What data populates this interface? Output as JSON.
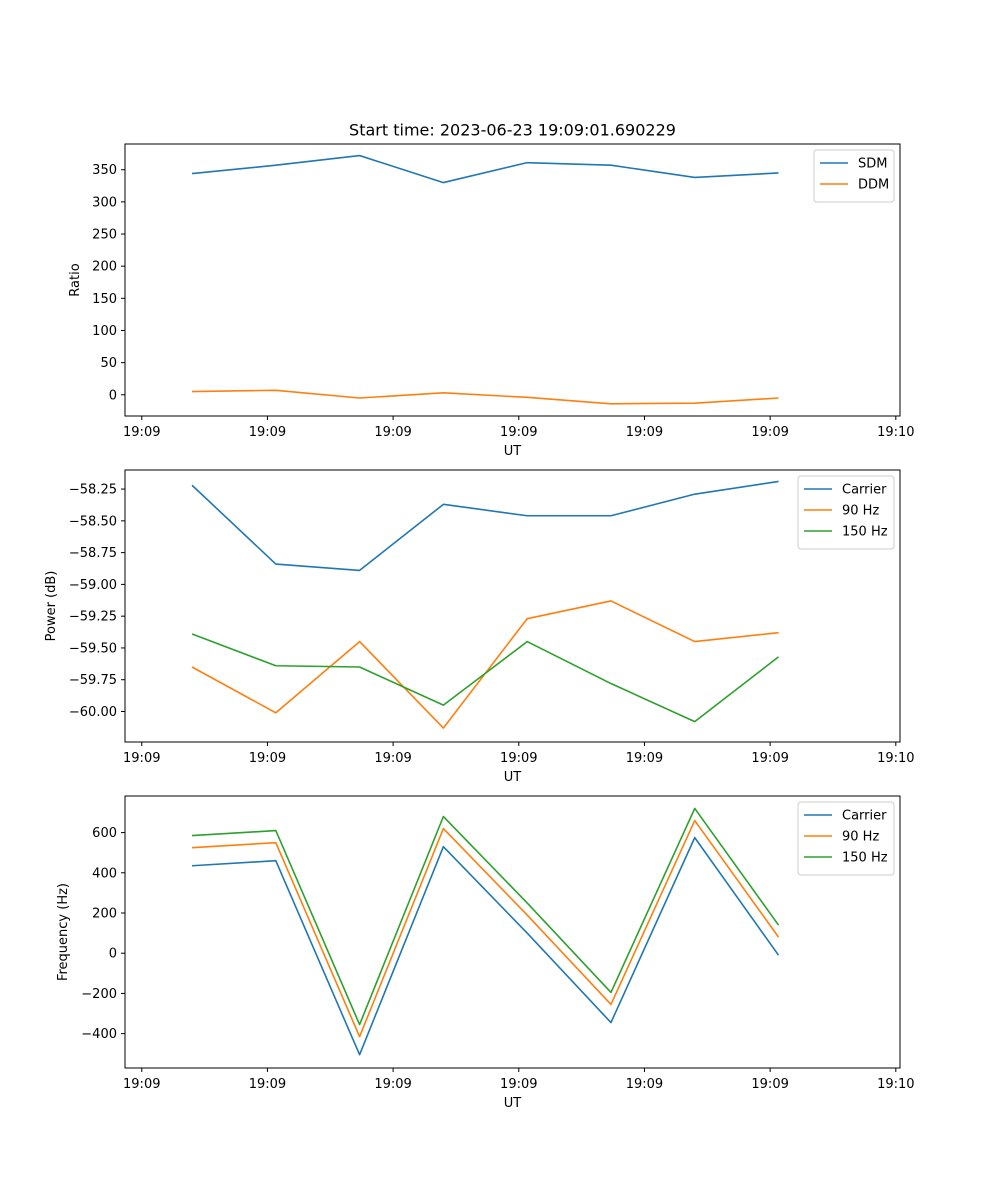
{
  "figure": {
    "title": "Start time: 2023-06-23 19:09:01.690229"
  },
  "colors": {
    "blue": "#1f77b4",
    "orange": "#ff7f0e",
    "green": "#2ca02c"
  },
  "chart_data": [
    {
      "type": "line",
      "title": "Start time: 2023-06-23 19:09:01.690229",
      "xlabel": "UT",
      "ylabel": "Ratio",
      "x": [
        1,
        2,
        3,
        4,
        5,
        6,
        7,
        8
      ],
      "xlim": [
        0.2,
        9.45
      ],
      "xticks": [
        0.4,
        1.9,
        3.4,
        4.9,
        6.4,
        7.9,
        9.4
      ],
      "xtick_labels": [
        "19:09",
        "19:09",
        "19:09",
        "19:09",
        "19:09",
        "19:09",
        "19:10"
      ],
      "ylim": [
        -33,
        390
      ],
      "yticks": [
        0,
        50,
        100,
        150,
        200,
        250,
        300,
        350
      ],
      "ytick_labels": [
        "0",
        "50",
        "100",
        "150",
        "200",
        "250",
        "300",
        "350"
      ],
      "legend": "top-right",
      "series": [
        {
          "name": "SDM",
          "color": "#1f77b4",
          "values": [
            344,
            357,
            372,
            330,
            361,
            357,
            338,
            345
          ]
        },
        {
          "name": "DDM",
          "color": "#ff7f0e",
          "values": [
            5,
            7,
            -5,
            3,
            -4,
            -14,
            -13,
            -5
          ]
        }
      ]
    },
    {
      "type": "line",
      "xlabel": "UT",
      "ylabel": "Power (dB)",
      "x": [
        1,
        2,
        3,
        4,
        5,
        6,
        7,
        8
      ],
      "xlim": [
        0.2,
        9.45
      ],
      "xticks": [
        0.4,
        1.9,
        3.4,
        4.9,
        6.4,
        7.9,
        9.4
      ],
      "xtick_labels": [
        "19:09",
        "19:09",
        "19:09",
        "19:09",
        "19:09",
        "19:09",
        "19:10"
      ],
      "ylim": [
        -60.24,
        -58.1
      ],
      "yticks": [
        -60.0,
        -59.75,
        -59.5,
        -59.25,
        -59.0,
        -58.75,
        -58.5,
        -58.25
      ],
      "ytick_labels": [
        "−60.00",
        "−59.75",
        "−59.50",
        "−59.25",
        "−59.00",
        "−58.75",
        "−58.50",
        "−58.25"
      ],
      "legend": "top-right",
      "series": [
        {
          "name": "Carrier",
          "color": "#1f77b4",
          "values": [
            -58.22,
            -58.84,
            -58.89,
            -58.37,
            -58.46,
            -58.46,
            -58.29,
            -58.19
          ]
        },
        {
          "name": "90 Hz",
          "color": "#ff7f0e",
          "values": [
            -59.65,
            -60.01,
            -59.45,
            -60.13,
            -59.27,
            -59.13,
            -59.45,
            -59.38
          ]
        },
        {
          "name": "150 Hz",
          "color": "#2ca02c",
          "values": [
            -59.39,
            -59.64,
            -59.65,
            -59.95,
            -59.45,
            -59.78,
            -60.08,
            -59.57
          ]
        }
      ]
    },
    {
      "type": "line",
      "xlabel": "UT",
      "ylabel": "Frequency (Hz)",
      "x": [
        1,
        2,
        3,
        4,
        5,
        6,
        7,
        8
      ],
      "xlim": [
        0.2,
        9.45
      ],
      "xticks": [
        0.4,
        1.9,
        3.4,
        4.9,
        6.4,
        7.9,
        9.4
      ],
      "xtick_labels": [
        "19:09",
        "19:09",
        "19:09",
        "19:09",
        "19:09",
        "19:09",
        "19:10"
      ],
      "ylim": [
        -571,
        782
      ],
      "yticks": [
        -400,
        -200,
        0,
        200,
        400,
        600
      ],
      "ytick_labels": [
        "−400",
        "−200",
        "0",
        "200",
        "400",
        "600"
      ],
      "legend": "top-right",
      "series": [
        {
          "name": "Carrier",
          "color": "#1f77b4",
          "values": [
            435,
            460,
            -505,
            530,
            100,
            -345,
            575,
            -10
          ]
        },
        {
          "name": "90 Hz",
          "color": "#ff7f0e",
          "values": [
            525,
            550,
            -415,
            620,
            190,
            -255,
            660,
            80
          ]
        },
        {
          "name": "150 Hz",
          "color": "#2ca02c",
          "values": [
            585,
            610,
            -355,
            680,
            250,
            -195,
            720,
            140
          ]
        }
      ]
    }
  ]
}
